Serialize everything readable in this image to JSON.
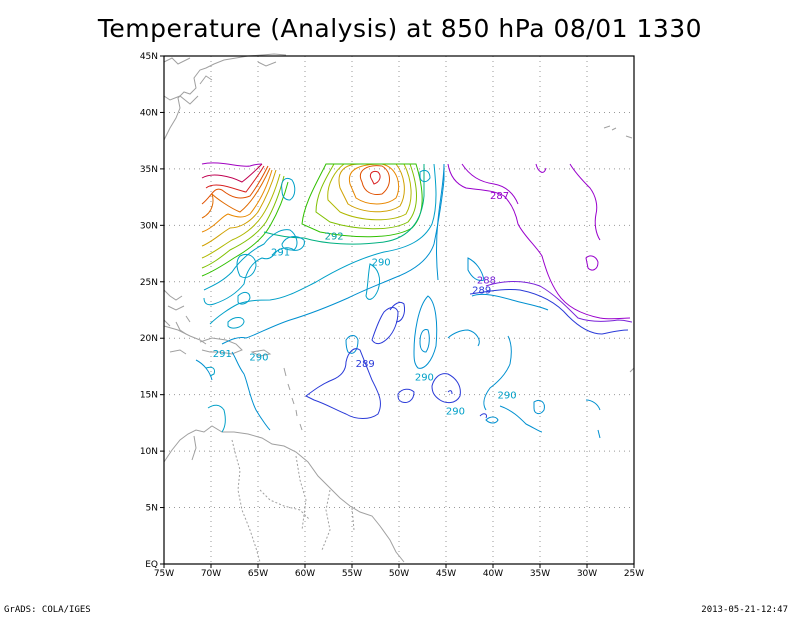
{
  "title": "Temperature (Analysis) at 850 hPa 08/01 1330",
  "footer": {
    "left": "GrADS: COLA/IGES",
    "right": "2013-05-21-12:47"
  },
  "chart_data": {
    "type": "contour",
    "variable": "Temperature",
    "level": "850 hPa",
    "lon_range": [
      -75,
      -25
    ],
    "lat_range": [
      0,
      45
    ],
    "x_ticks": [
      "75W",
      "70W",
      "65W",
      "60W",
      "55W",
      "50W",
      "45W",
      "40W",
      "35W",
      "30W",
      "25W"
    ],
    "y_ticks": [
      "EQ",
      "5N",
      "10N",
      "15N",
      "20N",
      "25N",
      "30N",
      "35N",
      "40N",
      "45N"
    ],
    "grid": "dotted",
    "contour_labels": [
      {
        "text": "287",
        "lon": -39.3,
        "lat": 32.7,
        "color": "#9900cc"
      },
      {
        "text": "288",
        "lon": -40.7,
        "lat": 25.2,
        "color": "#7a22d8"
      },
      {
        "text": "289",
        "lon": -41.2,
        "lat": 24.3,
        "color": "#2a3ad8"
      },
      {
        "text": "292",
        "lon": -56.9,
        "lat": 29.1,
        "color": "#00a0a0"
      },
      {
        "text": "291",
        "lon": -62.6,
        "lat": 27.7,
        "color": "#00a0c8"
      },
      {
        "text": "290",
        "lon": -51.9,
        "lat": 26.8,
        "color": "#00a0c8"
      },
      {
        "text": "291",
        "lon": -68.8,
        "lat": 18.7,
        "color": "#00a0c8"
      },
      {
        "text": "290",
        "lon": -64.9,
        "lat": 18.4,
        "color": "#00a0c8"
      },
      {
        "text": "289",
        "lon": -53.6,
        "lat": 17.8,
        "color": "#2a3ad8"
      },
      {
        "text": "290",
        "lon": -47.3,
        "lat": 16.6,
        "color": "#00a0c8"
      },
      {
        "text": "290",
        "lon": -44.0,
        "lat": 13.6,
        "color": "#00a0c8"
      },
      {
        "text": "290",
        "lon": -38.5,
        "lat": 15.0,
        "color": "#00a0c8"
      }
    ]
  }
}
